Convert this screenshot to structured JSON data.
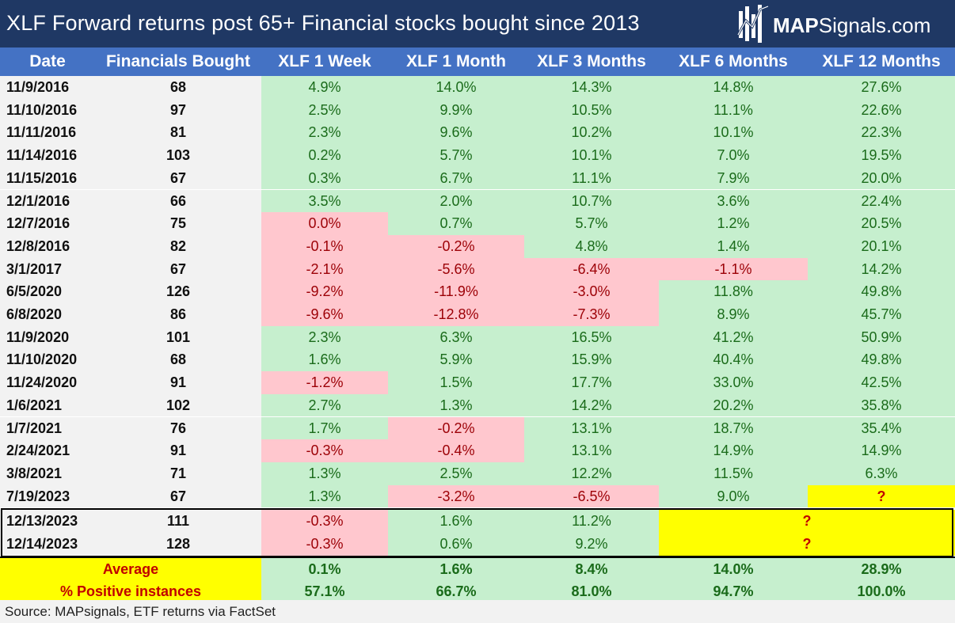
{
  "title": "XLF Forward returns post 65+ Financial stocks bought since 2013",
  "logo": {
    "bold": "MAP",
    "regular": "Signals.com"
  },
  "source": "Source: MAPsignals, ETF returns via FactSet",
  "colors": {
    "title_bg": "#1f3864",
    "header_bg": "#4472c4",
    "positive_bg": "#c6efce",
    "positive_text": "#1a6b1a",
    "negative_bg": "#ffc7ce",
    "negative_text": "#9c0006",
    "pending_bg": "#ffff00",
    "pending_text": "#c00000"
  },
  "chart_data": {
    "type": "table",
    "columns": [
      "Date",
      "Financials Bought",
      "XLF 1 Week",
      "XLF 1 Month",
      "XLF 3 Months",
      "XLF 6 Months",
      "XLF 12 Months"
    ],
    "rows": [
      {
        "date": "11/9/2016",
        "bought": "68",
        "r": [
          "4.9%",
          "14.0%",
          "14.3%",
          "14.8%",
          "27.6%"
        ]
      },
      {
        "date": "11/10/2016",
        "bought": "97",
        "r": [
          "2.5%",
          "9.9%",
          "10.5%",
          "11.1%",
          "22.6%"
        ]
      },
      {
        "date": "11/11/2016",
        "bought": "81",
        "r": [
          "2.3%",
          "9.6%",
          "10.2%",
          "10.1%",
          "22.3%"
        ]
      },
      {
        "date": "11/14/2016",
        "bought": "103",
        "r": [
          "0.2%",
          "5.7%",
          "10.1%",
          "7.0%",
          "19.5%"
        ]
      },
      {
        "date": "11/15/2016",
        "bought": "67",
        "r": [
          "0.3%",
          "6.7%",
          "11.1%",
          "7.9%",
          "20.0%"
        ]
      },
      {
        "date": "12/1/2016",
        "bought": "66",
        "r": [
          "3.5%",
          "2.0%",
          "10.7%",
          "3.6%",
          "22.4%"
        ]
      },
      {
        "date": "12/7/2016",
        "bought": "75",
        "r": [
          "0.0%",
          "0.7%",
          "5.7%",
          "1.2%",
          "20.5%"
        ],
        "neg": [
          0
        ]
      },
      {
        "date": "12/8/2016",
        "bought": "82",
        "r": [
          "-0.1%",
          "-0.2%",
          "4.8%",
          "1.4%",
          "20.1%"
        ]
      },
      {
        "date": "3/1/2017",
        "bought": "67",
        "r": [
          "-2.1%",
          "-5.6%",
          "-6.4%",
          "-1.1%",
          "14.2%"
        ]
      },
      {
        "date": "6/5/2020",
        "bought": "126",
        "r": [
          "-9.2%",
          "-11.9%",
          "-3.0%",
          "11.8%",
          "49.8%"
        ]
      },
      {
        "date": "6/8/2020",
        "bought": "86",
        "r": [
          "-9.6%",
          "-12.8%",
          "-7.3%",
          "8.9%",
          "45.7%"
        ]
      },
      {
        "date": "11/9/2020",
        "bought": "101",
        "r": [
          "2.3%",
          "6.3%",
          "16.5%",
          "41.2%",
          "50.9%"
        ]
      },
      {
        "date": "11/10/2020",
        "bought": "68",
        "r": [
          "1.6%",
          "5.9%",
          "15.9%",
          "40.4%",
          "49.8%"
        ]
      },
      {
        "date": "11/24/2020",
        "bought": "91",
        "r": [
          "-1.2%",
          "1.5%",
          "17.7%",
          "33.0%",
          "42.5%"
        ]
      },
      {
        "date": "1/6/2021",
        "bought": "102",
        "r": [
          "2.7%",
          "1.3%",
          "14.2%",
          "20.2%",
          "35.8%"
        ]
      },
      {
        "date": "1/7/2021",
        "bought": "76",
        "r": [
          "1.7%",
          "-0.2%",
          "13.1%",
          "18.7%",
          "35.4%"
        ]
      },
      {
        "date": "2/24/2021",
        "bought": "91",
        "r": [
          "-0.3%",
          "-0.4%",
          "13.1%",
          "14.9%",
          "14.9%"
        ]
      },
      {
        "date": "3/8/2021",
        "bought": "71",
        "r": [
          "1.3%",
          "2.5%",
          "12.2%",
          "11.5%",
          "6.3%"
        ]
      },
      {
        "date": "7/19/2023",
        "bought": "67",
        "r": [
          "1.3%",
          "-3.2%",
          "-6.5%",
          "9.0%",
          "?"
        ]
      },
      {
        "date": "12/13/2023",
        "bought": "111",
        "r": [
          "-0.3%",
          "1.6%",
          "11.2%",
          "?"
        ],
        "recent": true
      },
      {
        "date": "12/14/2023",
        "bought": "128",
        "r": [
          "-0.3%",
          "0.6%",
          "9.2%",
          "?"
        ],
        "recent": true
      }
    ],
    "summary": [
      {
        "label": "Average",
        "values": [
          "0.1%",
          "1.6%",
          "8.4%",
          "14.0%",
          "28.9%"
        ]
      },
      {
        "label": "% Positive instances",
        "values": [
          "57.1%",
          "66.7%",
          "81.0%",
          "94.7%",
          "100.0%"
        ]
      }
    ]
  }
}
